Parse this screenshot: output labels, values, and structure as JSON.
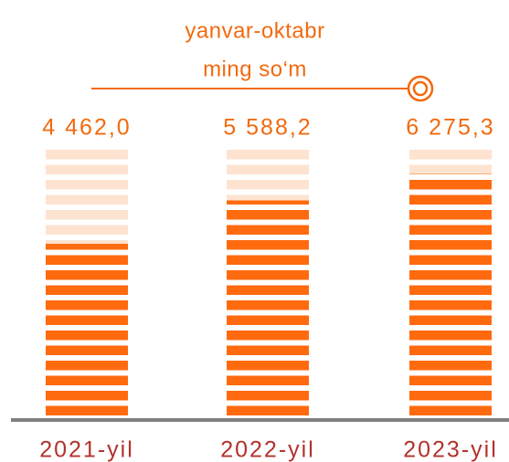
{
  "chart_data": {
    "type": "bar",
    "title": "yanvar-oktabr",
    "subtitle": "ming so‘m",
    "categories": [
      "2021-yil",
      "2022-yil",
      "2023-yil"
    ],
    "values": [
      4462.0,
      5588.2,
      6275.3
    ],
    "value_labels": [
      "4 462,0",
      "5 588,2",
      "6 275,3"
    ],
    "color": "#ff6a0f",
    "ylim": [
      0,
      7000
    ]
  }
}
